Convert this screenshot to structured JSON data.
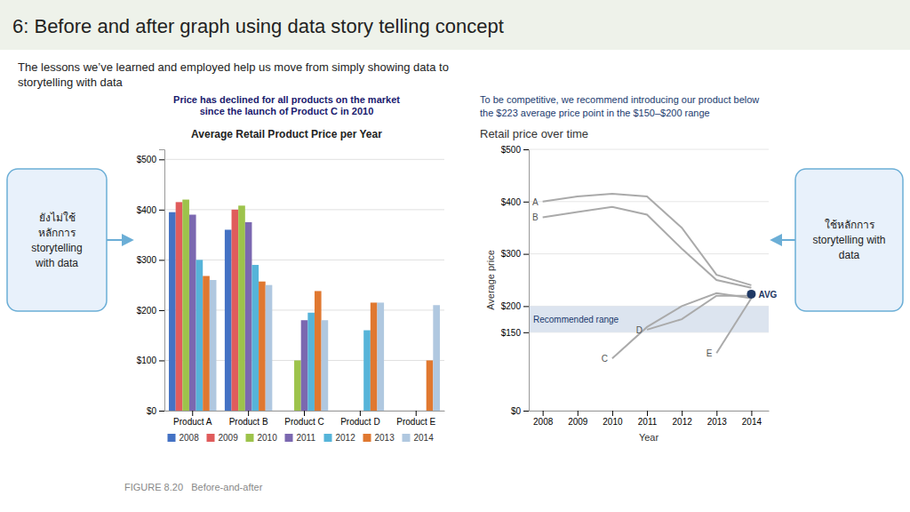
{
  "title": "6: Before and after graph using data story telling concept",
  "subtitle": [
    "The lessons we’ve learned and employed help us move from simply showing data to",
    "storytelling with data"
  ],
  "annotations": [
    "ยังไม่ใช้\nหลักการ\nstorytelling\nwith data",
    "ใช้หลักการ\nstorytelling with\ndata",
    "FIGURE 8.20   Before-and-after"
  ],
  "chart_data": [
    {
      "type": "bar",
      "title": "Average Retail Product Price per Year",
      "annotations": [
        "Price has declined for all products on the market\nsince the launch of Product C in 2010"
      ],
      "categories": [
        "Product A",
        "Product B",
        "Product C",
        "Product D",
        "Product E"
      ],
      "series": [
        {
          "name": "2008",
          "color": "#4472c4",
          "values": [
            395,
            360,
            0,
            0,
            0
          ]
        },
        {
          "name": "2009",
          "color": "#e05c5c",
          "values": [
            415,
            400,
            0,
            0,
            0
          ]
        },
        {
          "name": "2010",
          "color": "#9dc34b",
          "values": [
            420,
            408,
            100,
            0,
            0
          ]
        },
        {
          "name": "2011",
          "color": "#7b68b0",
          "values": [
            390,
            375,
            180,
            0,
            0
          ]
        },
        {
          "name": "2012",
          "color": "#56b4d9",
          "values": [
            300,
            290,
            195,
            160,
            0
          ]
        },
        {
          "name": "2013",
          "color": "#e07830",
          "values": [
            268,
            257,
            238,
            215,
            100
          ]
        },
        {
          "name": "2014",
          "color": "#b0c8e0",
          "values": [
            260,
            250,
            180,
            215,
            210
          ]
        }
      ],
      "ylim": [
        0,
        520
      ],
      "yticks": [
        {
          "value": 0,
          "label": "$0"
        },
        {
          "value": 100,
          "label": "$100"
        },
        {
          "value": 200,
          "label": "$200"
        },
        {
          "value": 300,
          "label": "$300"
        },
        {
          "value": 400,
          "label": "$400"
        },
        {
          "value": 500,
          "label": "$500"
        }
      ],
      "grid": true,
      "legend": "bottom"
    },
    {
      "type": "line",
      "title": "Retail price over time",
      "annotations": [
        "To be competitive, we recommend introducing our product below",
        "the $223 average price point in the $150–$200 range"
      ],
      "x_label": "Year",
      "y_label": "Average price",
      "x": [
        2008,
        2009,
        2010,
        2011,
        2012,
        2013,
        2014
      ],
      "series": [
        {
          "name": "A",
          "color": "#aaaaaa",
          "values": [
            400,
            410,
            415,
            410,
            350,
            260,
            240
          ]
        },
        {
          "name": "B",
          "color": "#aaaaaa",
          "values": [
            370,
            380,
            390,
            375,
            310,
            250,
            235
          ]
        },
        {
          "name": "C",
          "color": "#aaaaaa",
          "values": [
            null,
            null,
            100,
            160,
            200,
            225,
            215
          ]
        },
        {
          "name": "D",
          "color": "#aaaaaa",
          "values": [
            null,
            null,
            null,
            155,
            175,
            220,
            220
          ]
        },
        {
          "name": "E",
          "color": "#aaaaaa",
          "values": [
            null,
            null,
            null,
            null,
            null,
            110,
            215
          ]
        },
        {
          "name": "AVG",
          "type": "scatter",
          "marker": "circle",
          "color": "#1f3864",
          "values": [
            null,
            null,
            null,
            null,
            null,
            null,
            223
          ]
        }
      ],
      "range_band": {
        "values": [
          150,
          200
        ],
        "label": "Recommended range",
        "color": "#dce4ef"
      },
      "xlim": [
        2007.6,
        2014.5
      ],
      "xticks": [
        2008,
        2009,
        2010,
        2011,
        2012,
        2013,
        2014
      ],
      "ylim": [
        0,
        500
      ],
      "yticks": [
        {
          "value": 0,
          "label": "$0"
        },
        {
          "value": 150,
          "label": "$150"
        },
        {
          "value": 200,
          "label": "$200"
        },
        {
          "value": 300,
          "label": "$300"
        },
        {
          "value": 400,
          "label": "$400"
        },
        {
          "value": 500,
          "label": "$500"
        }
      ],
      "grid": true
    }
  ]
}
